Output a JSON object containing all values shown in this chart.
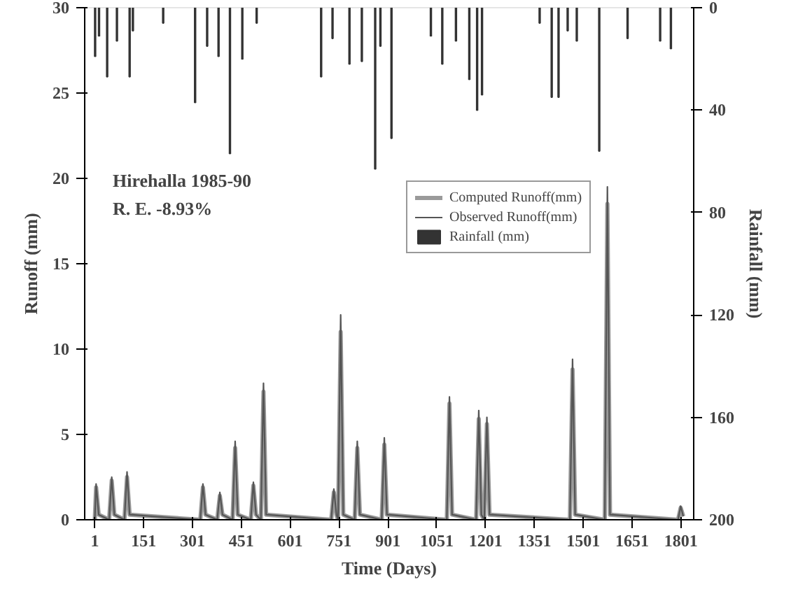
{
  "chart_data": {
    "type": "line",
    "xlabel": "Time (Days)",
    "ylabel": "Runoff (mm)",
    "y2label": "Rainfall (mm)",
    "annotations": [
      "Hirehalla 1985-90",
      "R. E. -8.93%"
    ],
    "xlim": [
      -30,
      1840
    ],
    "xticks": [
      1,
      151,
      301,
      451,
      601,
      751,
      901,
      1051,
      1201,
      1351,
      1501,
      1651,
      1801
    ],
    "ylim": [
      0,
      30
    ],
    "yticks": [
      0,
      5,
      10,
      15,
      20,
      25,
      30
    ],
    "y2lim": [
      200,
      0
    ],
    "y2ticks": [
      0,
      40,
      80,
      120,
      160,
      200
    ],
    "grid": false,
    "legend": "center",
    "line_style": "solid",
    "marker": "none",
    "series": [
      {
        "name": "Computed Runoff(mm)",
        "color": "#9a9a9a",
        "x": [
          1,
          5,
          13,
          45,
          53,
          61,
          92,
          100,
          108,
          325,
          333,
          341,
          377,
          385,
          393,
          424,
          432,
          440,
          480,
          488,
          496,
          511,
          519,
          527,
          727,
          735,
          743,
          748,
          756,
          764,
          799,
          807,
          815,
          882,
          890,
          898,
          1082,
          1090,
          1098,
          1172,
          1180,
          1188,
          1197,
          1205,
          1213,
          1460,
          1468,
          1476,
          1567,
          1575,
          1583,
          1792,
          1800,
          1808
        ],
        "values": [
          0,
          1.9,
          0.3,
          0,
          2.3,
          0.3,
          0,
          2.5,
          0.3,
          0,
          1.9,
          0.3,
          0,
          1.4,
          0.3,
          0,
          4.2,
          0.3,
          0,
          2.0,
          0.3,
          0,
          7.5,
          0.3,
          0,
          1.6,
          0.3,
          0,
          11.0,
          0.3,
          0,
          4.2,
          0.3,
          0,
          4.4,
          0.3,
          0,
          6.8,
          0.3,
          0,
          5.9,
          0.3,
          0,
          5.6,
          0.3,
          0,
          8.8,
          0.3,
          0,
          18.5,
          0.3,
          0,
          0.7,
          0.2
        ]
      },
      {
        "name": "Observed Runoff(mm)",
        "color": "#555555",
        "x": [
          1,
          5,
          13,
          45,
          53,
          61,
          92,
          100,
          108,
          325,
          333,
          341,
          377,
          385,
          393,
          424,
          432,
          440,
          480,
          488,
          496,
          511,
          519,
          527,
          727,
          735,
          743,
          748,
          756,
          764,
          799,
          807,
          815,
          882,
          890,
          898,
          1082,
          1090,
          1098,
          1172,
          1180,
          1188,
          1197,
          1205,
          1213,
          1460,
          1468,
          1476,
          1567,
          1575,
          1583,
          1792,
          1800,
          1808
        ],
        "values": [
          0,
          2.1,
          0.3,
          0,
          2.5,
          0.3,
          0,
          2.8,
          0.3,
          0,
          2.1,
          0.3,
          0,
          1.6,
          0.3,
          0,
          4.6,
          0.3,
          0,
          2.2,
          0.3,
          0,
          8.0,
          0.3,
          0,
          1.8,
          0.3,
          0,
          12.0,
          0.3,
          0,
          4.6,
          0.3,
          0,
          4.8,
          0.3,
          0,
          7.2,
          0.3,
          0,
          6.4,
          0.3,
          0,
          6.0,
          0.3,
          0,
          9.4,
          0.3,
          0,
          19.5,
          0.3,
          0,
          0.8,
          0.2
        ]
      },
      {
        "name": "Rainfall (mm)",
        "color": "#333333",
        "type": "bar",
        "axis": "y2",
        "x": [
          2,
          14,
          39,
          69,
          108,
          118,
          211,
          309,
          346,
          381,
          416,
          454,
          498,
          696,
          731,
          783,
          821,
          862,
          878,
          912,
          1033,
          1068,
          1110,
          1151,
          1175,
          1190,
          1367,
          1404,
          1425,
          1453,
          1481,
          1550,
          1637,
          1737,
          1770
        ],
        "values": [
          19,
          11,
          27,
          13,
          27,
          9,
          6,
          37,
          15,
          19,
          57,
          20,
          6,
          27,
          12,
          22,
          21,
          63,
          15,
          51,
          11,
          22,
          13,
          28,
          40,
          34,
          6,
          35,
          35,
          9,
          13,
          56,
          12,
          13,
          16
        ]
      }
    ]
  }
}
